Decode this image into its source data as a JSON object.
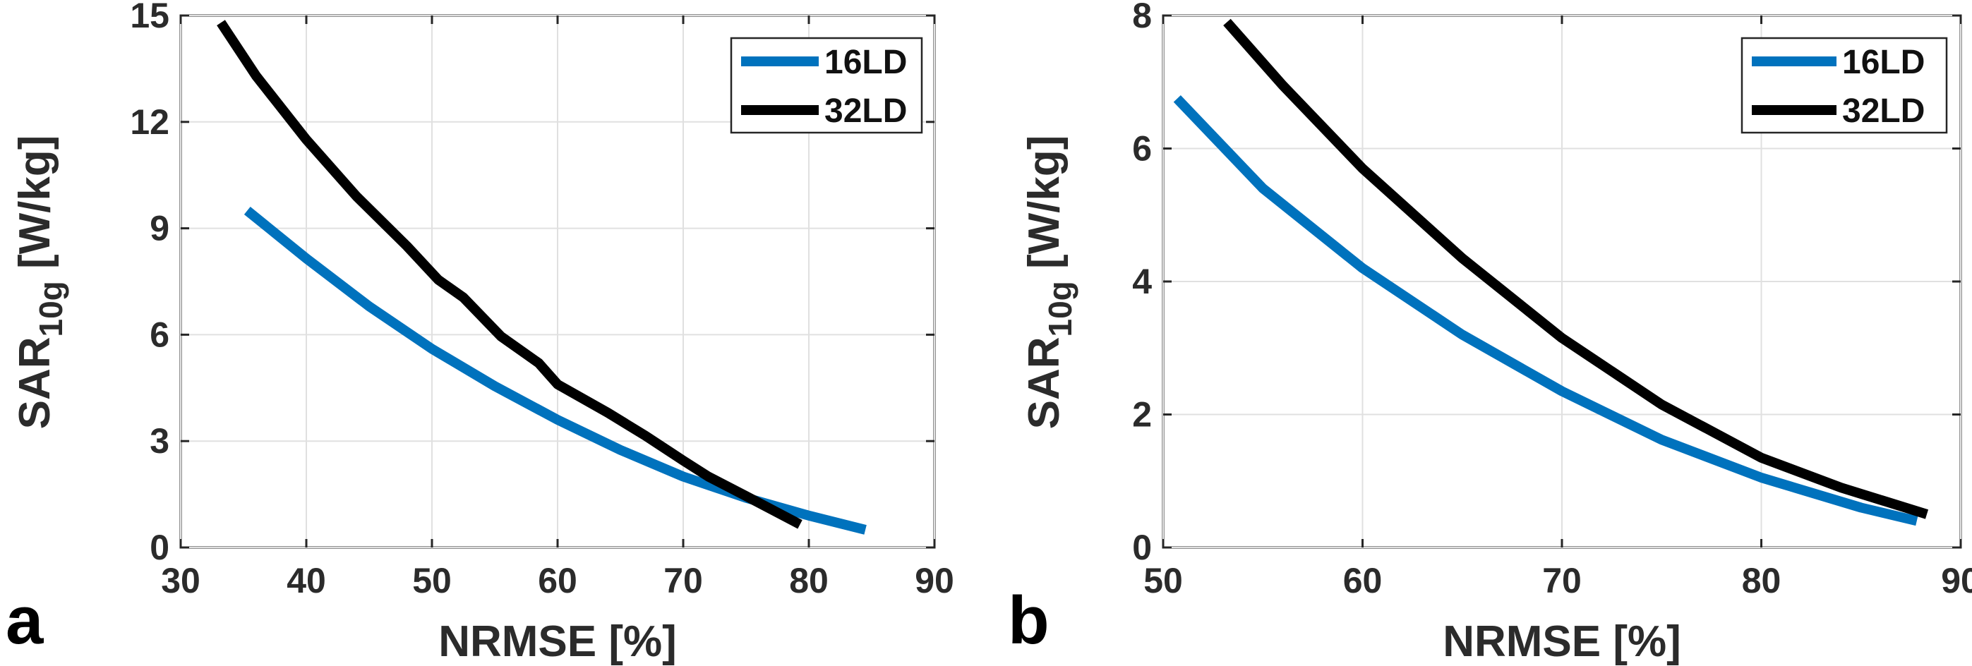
{
  "figure": {
    "panels": [
      {
        "id": "a",
        "label": "a"
      },
      {
        "id": "b",
        "label": "b"
      }
    ]
  },
  "chart_data": [
    {
      "type": "line",
      "panel": "a",
      "title": "",
      "xlabel": "NRMSE [%]",
      "ylabel_main": "SAR",
      "ylabel_sub": "10g",
      "ylabel_unit": " [W/kg]",
      "xlim": [
        30,
        90
      ],
      "ylim": [
        0,
        15
      ],
      "xticks": [
        30,
        40,
        50,
        60,
        70,
        80,
        90
      ],
      "yticks": [
        0,
        3,
        6,
        9,
        12,
        15
      ],
      "grid": true,
      "legend": "top-right",
      "series": [
        {
          "name": "16LD",
          "color": "#0072BD",
          "x": [
            35.3,
            40,
            45,
            50,
            55,
            60,
            65,
            70,
            75,
            80,
            84.5
          ],
          "y": [
            9.5,
            8.15,
            6.8,
            5.6,
            4.55,
            3.6,
            2.75,
            2.0,
            1.4,
            0.9,
            0.5
          ]
        },
        {
          "name": "32LD",
          "color": "#000000",
          "x": [
            33.2,
            36,
            40,
            44,
            48,
            50.5,
            52.5,
            55.5,
            58.5,
            60,
            64,
            67,
            70,
            72,
            75,
            79.3
          ],
          "y": [
            14.8,
            13.3,
            11.5,
            9.9,
            8.5,
            7.55,
            7.05,
            5.95,
            5.2,
            4.6,
            3.8,
            3.15,
            2.45,
            2.0,
            1.45,
            0.65
          ]
        }
      ]
    },
    {
      "type": "line",
      "panel": "b",
      "title": "",
      "xlabel": "NRMSE [%]",
      "ylabel_main": "SAR",
      "ylabel_sub": "10g",
      "ylabel_unit": " [W/kg]",
      "xlim": [
        50,
        90
      ],
      "ylim": [
        0,
        8
      ],
      "xticks": [
        50,
        60,
        70,
        80,
        90
      ],
      "yticks": [
        0,
        2,
        4,
        6,
        8
      ],
      "grid": true,
      "legend": "top-right",
      "series": [
        {
          "name": "16LD",
          "color": "#0072BD",
          "x": [
            50.7,
            55,
            60,
            65,
            70,
            75,
            80,
            85,
            87.8
          ],
          "y": [
            6.75,
            5.4,
            4.2,
            3.2,
            2.35,
            1.62,
            1.05,
            0.6,
            0.4
          ]
        },
        {
          "name": "32LD",
          "color": "#000000",
          "x": [
            53.2,
            56,
            60,
            65,
            70,
            75,
            80,
            84,
            88.3
          ],
          "y": [
            7.9,
            6.95,
            5.7,
            4.35,
            3.15,
            2.15,
            1.35,
            0.9,
            0.5
          ]
        }
      ]
    }
  ]
}
